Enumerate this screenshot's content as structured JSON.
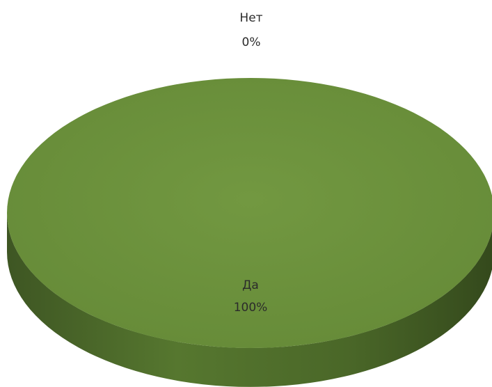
{
  "chart_data": {
    "type": "pie",
    "style": "3d",
    "slices": [
      {
        "name": "Да",
        "percent_label": "100%",
        "value": 100
      },
      {
        "name": "Нет",
        "percent_label": "0%",
        "value": 0
      }
    ],
    "colors": {
      "top": "#6b8e3a",
      "side": "#4f6d2c",
      "side_dark": "#3a5220",
      "label": "#2b2b2b"
    }
  }
}
